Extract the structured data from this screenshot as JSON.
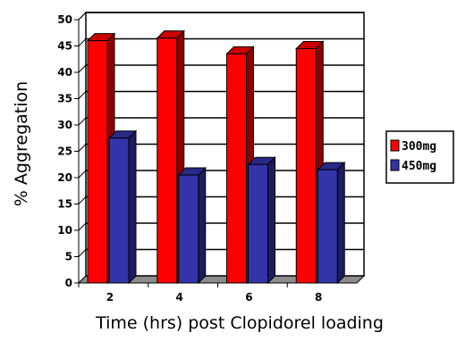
{
  "chart_data": {
    "type": "bar",
    "title": "",
    "xlabel": "Time (hrs)  post Clopidorel loading",
    "ylabel": "% Aggregation",
    "categories": [
      "2",
      "4",
      "6",
      "8"
    ],
    "series": [
      {
        "name": "300mg",
        "values": [
          46,
          46.5,
          43.5,
          44.5
        ],
        "color": "#ff0000"
      },
      {
        "name": "450mg",
        "values": [
          27.5,
          20.5,
          22.5,
          21.5
        ],
        "color": "#3333aa"
      }
    ],
    "ylim": [
      0,
      50
    ],
    "yticks": [
      0,
      5,
      10,
      15,
      20,
      25,
      30,
      35,
      40,
      45,
      50
    ],
    "grid": true,
    "style": "3d",
    "legend_position": "right"
  }
}
